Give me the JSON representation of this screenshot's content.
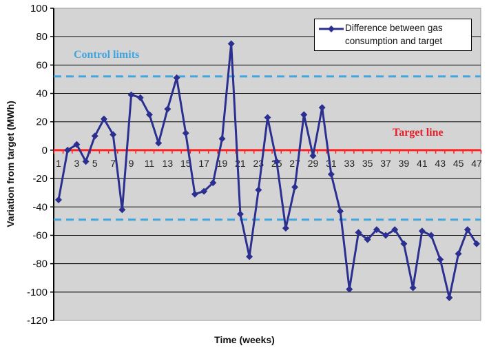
{
  "chart_data": {
    "type": "line",
    "title": "",
    "xlabel": "Time (weeks)",
    "ylabel": "Variation from target (MWh)",
    "ylim": [
      -120,
      100
    ],
    "yticks": [
      100,
      80,
      60,
      40,
      20,
      0,
      -20,
      -40,
      -60,
      -80,
      -100,
      -120
    ],
    "xtick_labels": [
      "1",
      "3",
      "5",
      "7",
      "9",
      "11",
      "13",
      "15",
      "17",
      "19",
      "21",
      "23",
      "25",
      "27",
      "29",
      "31",
      "33",
      "35",
      "37",
      "39",
      "41",
      "43",
      "45",
      "47"
    ],
    "grid": true,
    "background": "#d4d4d4",
    "legend_position": "top-right",
    "x": [
      1,
      2,
      3,
      4,
      5,
      6,
      7,
      8,
      9,
      10,
      11,
      12,
      13,
      14,
      15,
      16,
      17,
      18,
      19,
      20,
      21,
      22,
      23,
      24,
      25,
      26,
      27,
      28,
      29,
      30,
      31,
      32,
      33,
      34,
      35,
      36,
      37,
      38,
      39,
      40,
      41,
      42,
      43,
      44,
      45,
      46,
      47
    ],
    "series": [
      {
        "name": "Difference between gas consumption and target",
        "color": "#2b2f8f",
        "marker": "diamond",
        "values": [
          -35,
          0,
          4,
          -8,
          10,
          22,
          11,
          -42,
          39,
          37,
          25,
          5,
          29,
          51,
          12,
          -31,
          -29,
          -23,
          8,
          75,
          -45,
          -75,
          -28,
          23,
          -8,
          -55,
          -26,
          25,
          -4,
          30,
          -17,
          -43,
          -98,
          -58,
          -63,
          -56,
          -60,
          -56,
          -66,
          -97,
          -57,
          -60,
          -77,
          -104,
          -73,
          -56,
          -66
        ]
      }
    ],
    "reference_lines": [
      {
        "name": "Target line",
        "value": 0,
        "color": "#ff2020",
        "style": "solid"
      },
      {
        "name": "Upper control limit",
        "value": 52,
        "color": "#3fa6e0",
        "style": "dashed"
      },
      {
        "name": "Lower control limit",
        "value": -49,
        "color": "#3fa6e0",
        "style": "dashed"
      }
    ],
    "annotations": [
      {
        "text": "Control limits",
        "color": "#3fa6e0"
      },
      {
        "text": "Target line",
        "color": "#e8202a"
      }
    ]
  },
  "legend": {
    "label": "Difference between gas consumption and target"
  },
  "labels": {
    "x": "Time (weeks)",
    "y": "Variation from target (MWh)",
    "control": "Control limits",
    "target": "Target line"
  }
}
